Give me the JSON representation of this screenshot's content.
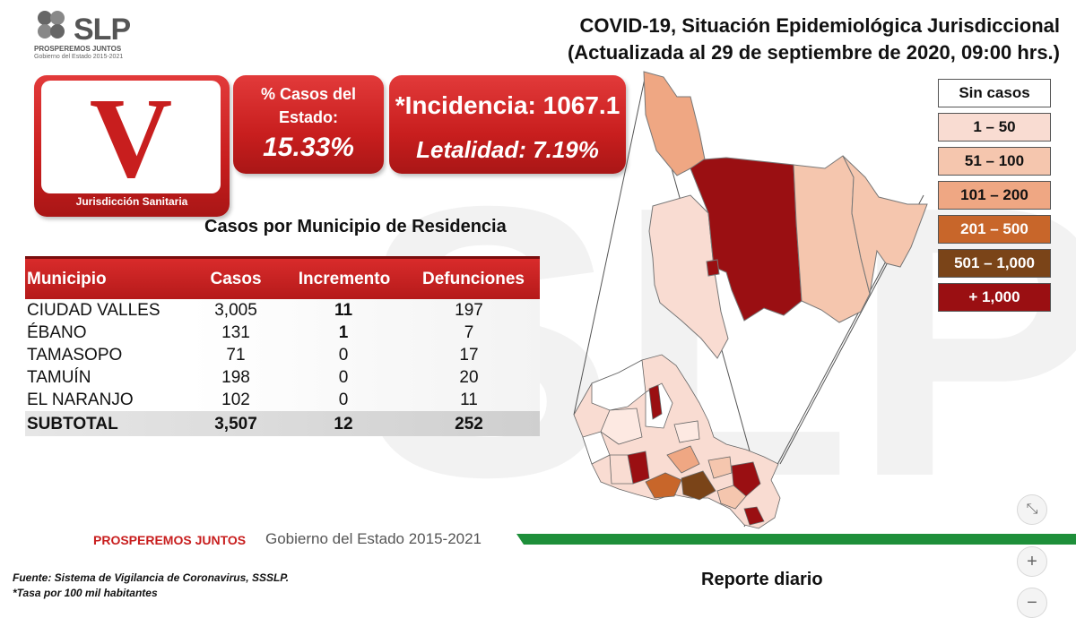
{
  "logo": {
    "brand": "SLP",
    "tagline": "PROSPEREMOS JUNTOS",
    "gov": "Gobierno del Estado 2015-2021"
  },
  "title": {
    "line1": "COVID-19, Situación Epidemiológica Jurisdiccional",
    "line2": "(Actualizada al 29 de septiembre de 2020, 09:00 hrs.)"
  },
  "badge": {
    "numeral": "V",
    "label": "Jurisdicción Sanitaria"
  },
  "percent_panel": {
    "label": "% Casos del Estado:",
    "value": "15.33%"
  },
  "incidence_panel": {
    "incidence": "*Incidencia: 1067.1",
    "lethality": "Letalidad: 7.19%"
  },
  "table": {
    "subtitle": "Casos por Municipio  de Residencia",
    "headers": [
      "Municipio",
      "Casos",
      "Incremento",
      "Defunciones"
    ],
    "rows": [
      {
        "municipio": "CIUDAD VALLES",
        "casos": "3,005",
        "incremento": "11",
        "defunciones": "197"
      },
      {
        "municipio": "ÉBANO",
        "casos": "131",
        "incremento": "1",
        "defunciones": "7"
      },
      {
        "municipio": "TAMASOPO",
        "casos": "71",
        "incremento": "0",
        "defunciones": "17"
      },
      {
        "municipio": "TAMUÍN",
        "casos": "198",
        "incremento": "0",
        "defunciones": "20"
      },
      {
        "municipio": "EL NARANJO",
        "casos": "102",
        "incremento": "0",
        "defunciones": "11"
      }
    ],
    "subtotal": {
      "municipio": "SUBTOTAL",
      "casos": "3,507",
      "incremento": "12",
      "defunciones": "252"
    }
  },
  "legend": [
    {
      "label": "Sin casos",
      "color": "#ffffff",
      "text_color": "#111111"
    },
    {
      "label": "1 – 50",
      "color": "#f9dcd2",
      "text_color": "#111111"
    },
    {
      "label": "51 – 100",
      "color": "#f5c6ae",
      "text_color": "#111111"
    },
    {
      "label": "101 – 200",
      "color": "#efa783",
      "text_color": "#111111"
    },
    {
      "label": "201 – 500",
      "color": "#c8662a",
      "text_color": "#ffffff"
    },
    {
      "label": "501 – 1,000",
      "color": "#7a4418",
      "text_color": "#ffffff"
    },
    {
      "label": "+ 1,000",
      "color": "#9a0f12",
      "text_color": "#ffffff"
    }
  ],
  "footer": {
    "red": "PROSPEREMOS JUNTOS",
    "gray": "Gobierno del Estado 2015-2021",
    "source": "Fuente: Sistema de Vigilancia de Coronavirus, SSSLP.",
    "note": "*Tasa por 100 mil habitantes",
    "report": "Reporte diario"
  },
  "controls": {
    "fit_icon": "fit-screen-icon",
    "zoom_in_icon": "plus-icon",
    "zoom_out_icon": "minus-icon",
    "zoom_in": "+",
    "zoom_out": "−",
    "fit": "⤡"
  },
  "colors": {
    "accent_red": "#c81e1e",
    "footer_green": "#1e8f3a"
  }
}
